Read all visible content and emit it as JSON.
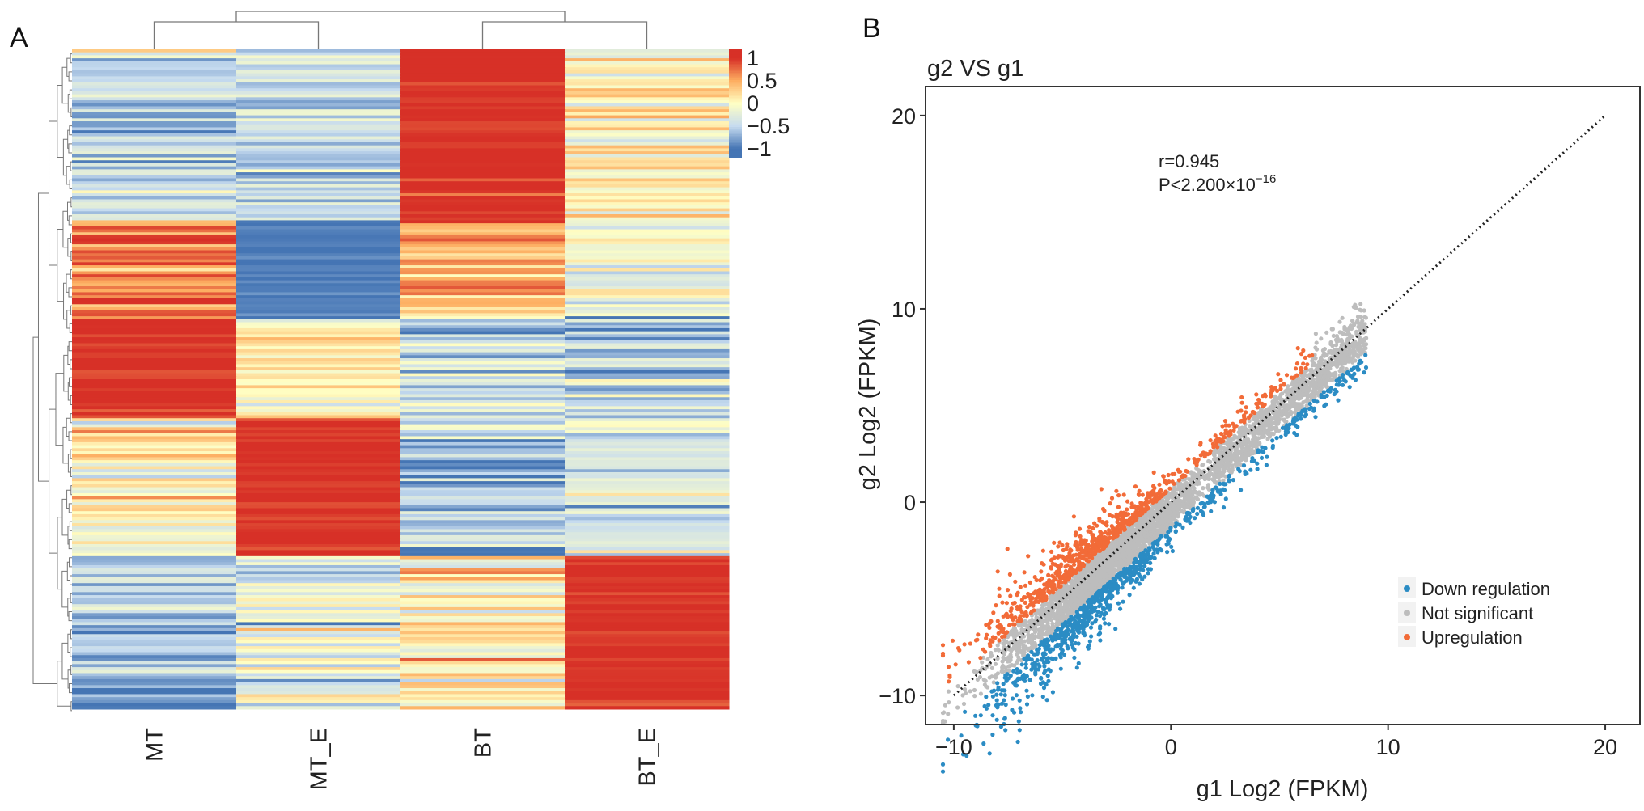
{
  "panels": {
    "a_label": "A",
    "b_label": "B"
  },
  "chart_data": [
    {
      "type": "heatmap",
      "title": "",
      "columns": [
        "MT",
        "MT_E",
        "BT",
        "BT_E"
      ],
      "colorbar": {
        "ticks": [
          1,
          0.5,
          0,
          -0.5,
          -1
        ],
        "tick_labels": [
          "1",
          "0.5",
          "0",
          "−0.5",
          "−1"
        ],
        "range": [
          -1.2,
          1.2
        ]
      },
      "colors": {
        "low": "#4575b4",
        "midlow": "#c6dbef",
        "mid": "#ffffc4",
        "midhigh": "#fdae61",
        "high": "#d73027"
      },
      "row_blocks": [
        {
          "fraction": 0.26,
          "values": [
            -0.45,
            -0.45,
            1.0,
            0.05
          ]
        },
        {
          "fraction": 0.15,
          "values": [
            0.75,
            -0.95,
            0.45,
            -0.2
          ]
        },
        {
          "fraction": 0.15,
          "values": [
            1.0,
            0.1,
            -0.45,
            -0.6
          ]
        },
        {
          "fraction": 0.21,
          "values": [
            0.05,
            1.0,
            -0.55,
            -0.3
          ]
        },
        {
          "fraction": 0.23,
          "values": [
            -0.65,
            -0.25,
            0.05,
            1.0
          ]
        }
      ],
      "dendrogram": "hierarchical clustering: (MT, MT_E), (BT, BT_E)"
    },
    {
      "type": "scatter",
      "title": "g2 VS g1",
      "xlabel": "g1 Log2 (FPKM)",
      "ylabel": "g2 Log2 (FPKM)",
      "xlim": [
        -11.3,
        21.6
      ],
      "ylim": [
        -11.5,
        21.5
      ],
      "xticks": [
        -10,
        0,
        10,
        20
      ],
      "yticks": [
        -10,
        0,
        10,
        20
      ],
      "annotation": {
        "r": "r=0.945",
        "p_base": "P<2.200×10",
        "p_exp": "−16"
      },
      "reference_line": {
        "x": [
          -10,
          20
        ],
        "y": [
          -10,
          20
        ],
        "style": "dotted"
      },
      "legend": {
        "position": "bottom-right",
        "entries": [
          {
            "label": "Down regulation",
            "color": "#2b8cc4"
          },
          {
            "label": "Not significant",
            "color": "#bdbdbd"
          },
          {
            "label": "Upregulation",
            "color": "#f26b38"
          }
        ]
      },
      "series_summary": {
        "x_range": [
          -10,
          12
        ],
        "points_approx": 5000
      }
    }
  ]
}
